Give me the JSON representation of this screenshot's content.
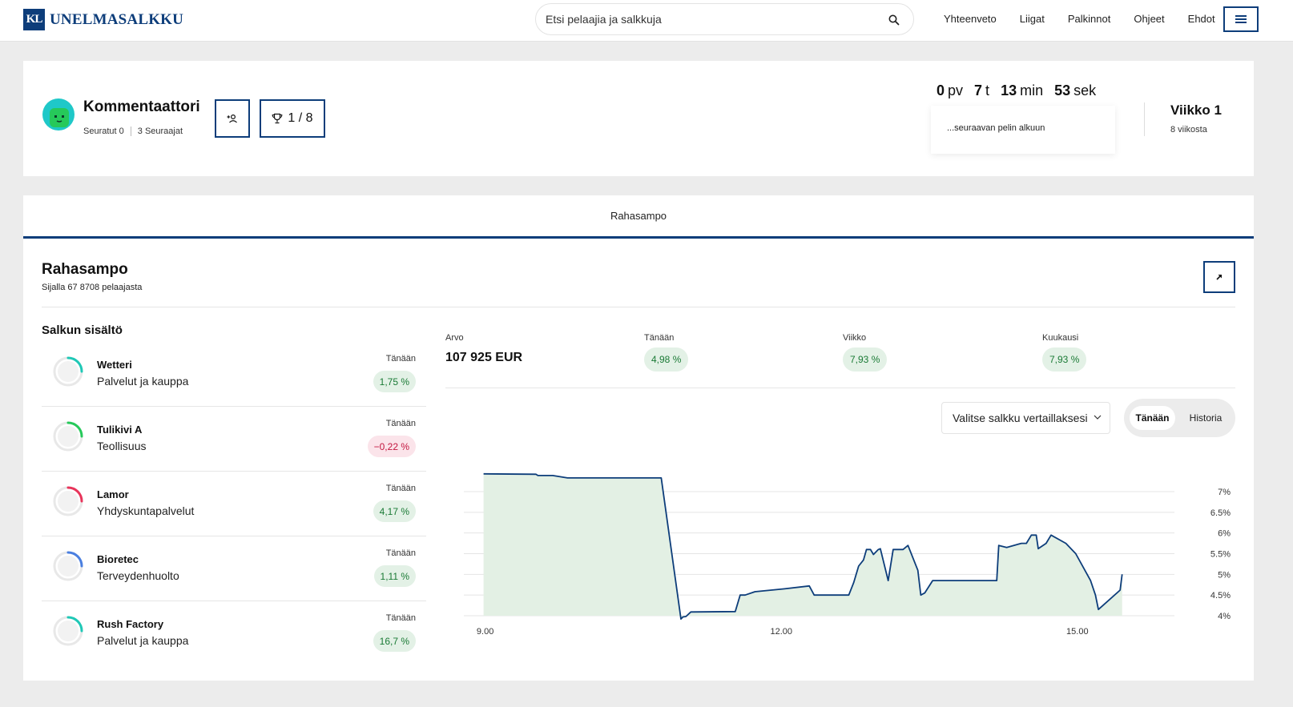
{
  "header": {
    "logo_mark": "KL",
    "logo_text": "UNELMASALKKU",
    "search_placeholder": "Etsi pelaajia ja salkkuja",
    "nav": [
      "Yhteenveto",
      "Liigat",
      "Palkinnot",
      "Ohjeet",
      "Ehdot"
    ]
  },
  "profile": {
    "name": "Kommentaattori",
    "following": "Seuratut 0",
    "followers": "3 Seuraajat",
    "trophy": "1 / 8",
    "countdown": {
      "days": "0",
      "days_unit": "pv",
      "hours": "7",
      "hours_unit": "t",
      "minutes": "13",
      "minutes_unit": "min",
      "seconds": "53",
      "seconds_unit": "sek",
      "caption": "...seuraavan pelin alkuun"
    },
    "week": {
      "title": "Viikko 1",
      "sub": "8 viikosta"
    }
  },
  "main": {
    "tab": "Rahasampo",
    "title": "Rahasampo",
    "rank": "Sijalla 67 8708 pelaajasta",
    "holdings_title": "Salkun sisältö",
    "today_label": "Tänään",
    "holdings": [
      {
        "name": "Wetteri",
        "sector": "Palvelut ja kauppa",
        "change": "1,75 %",
        "sign": "pos",
        "ring_color": "#1fc8b6"
      },
      {
        "name": "Tulikivi A",
        "sector": "Teollisuus",
        "change": "−0,22 %",
        "sign": "neg",
        "ring_color": "#26c95a"
      },
      {
        "name": "Lamor",
        "sector": "Yhdyskuntapalvelut",
        "change": "4,17 %",
        "sign": "pos",
        "ring_color": "#e8345a"
      },
      {
        "name": "Bioretec",
        "sector": "Terveydenhuolto",
        "change": "1,11 %",
        "sign": "pos",
        "ring_color": "#4a7fe0"
      },
      {
        "name": "Rush Factory",
        "sector": "Palvelut ja kauppa",
        "change": "16,7 %",
        "sign": "pos",
        "ring_color": "#1fc8b6"
      }
    ],
    "kpis": {
      "value_label": "Arvo",
      "value": "107 925 EUR",
      "today_label": "Tänään",
      "today": "4,98 %",
      "week_label": "Viikko",
      "week": "7,93 %",
      "month_label": "Kuukausi",
      "month": "7,93 %"
    },
    "compare_select": "Valitse salkku vertaillaksesi",
    "toggle": {
      "on": "Tänään",
      "off": "Historia"
    }
  },
  "colors": {
    "brand": "#0d3d7a",
    "positive": "#1a7a35",
    "negative": "#c3163f",
    "area": "#e3f0e4"
  },
  "chart_data": {
    "type": "area",
    "x_ticks": [
      "9.00",
      "12.00",
      "15.00"
    ],
    "x_tick_values": [
      9,
      12,
      15
    ],
    "xlim": [
      8.8,
      16.0
    ],
    "y_ticks": [
      "7%",
      "6.5%",
      "6%",
      "5.5%",
      "5%",
      "4.5%",
      "4%"
    ],
    "y_tick_values": [
      7,
      6.5,
      6,
      5.5,
      5,
      4.5,
      4
    ],
    "ylim": [
      4,
      7
    ],
    "y_axis": "right",
    "points": [
      [
        9.0,
        7.43
      ],
      [
        9.53,
        7.42
      ],
      [
        9.55,
        7.39
      ],
      [
        9.7,
        7.39
      ],
      [
        9.85,
        7.33
      ],
      [
        10.8,
        7.33
      ],
      [
        11.0,
        3.92
      ],
      [
        11.02,
        3.97
      ],
      [
        11.05,
        3.98
      ],
      [
        11.1,
        4.09
      ],
      [
        11.55,
        4.1
      ],
      [
        11.6,
        4.5
      ],
      [
        11.65,
        4.5
      ],
      [
        11.75,
        4.58
      ],
      [
        12.05,
        4.65
      ],
      [
        12.3,
        4.72
      ],
      [
        12.35,
        4.5
      ],
      [
        12.7,
        4.5
      ],
      [
        12.75,
        4.8
      ],
      [
        12.8,
        5.2
      ],
      [
        12.85,
        5.35
      ],
      [
        12.88,
        5.6
      ],
      [
        12.92,
        5.6
      ],
      [
        12.95,
        5.48
      ],
      [
        13.0,
        5.6
      ],
      [
        13.02,
        5.62
      ],
      [
        13.1,
        4.85
      ],
      [
        13.15,
        5.6
      ],
      [
        13.25,
        5.6
      ],
      [
        13.3,
        5.7
      ],
      [
        13.4,
        5.1
      ],
      [
        13.43,
        4.5
      ],
      [
        13.47,
        4.55
      ],
      [
        13.55,
        4.85
      ],
      [
        13.85,
        4.85
      ],
      [
        14.2,
        4.85
      ],
      [
        14.22,
        5.7
      ],
      [
        14.3,
        5.65
      ],
      [
        14.45,
        5.75
      ],
      [
        14.5,
        5.75
      ],
      [
        14.55,
        5.95
      ],
      [
        14.6,
        5.95
      ],
      [
        14.62,
        5.62
      ],
      [
        14.7,
        5.75
      ],
      [
        14.75,
        5.95
      ],
      [
        14.9,
        5.75
      ],
      [
        15.0,
        5.5
      ],
      [
        15.15,
        4.85
      ],
      [
        15.2,
        4.5
      ],
      [
        15.23,
        4.15
      ],
      [
        15.45,
        4.62
      ],
      [
        15.47,
        5.0
      ]
    ]
  }
}
